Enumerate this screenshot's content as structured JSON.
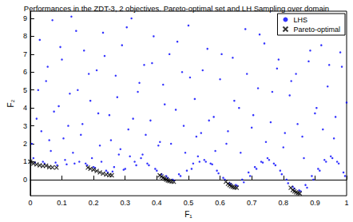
{
  "chart_data": {
    "type": "scatter",
    "title": "Performances in the ZDT-3, 2 objectives. Pareto-optimal set and LH Sampling over domain",
    "x_label": "F₁",
    "y_label": "F₂",
    "xlim": [
      0,
      1
    ],
    "ylim": [
      -0.9,
      9.4
    ],
    "xticks": [
      0,
      0.1,
      0.2,
      0.3,
      0.4,
      0.5,
      0.6,
      0.7,
      0.8,
      0.9,
      1
    ],
    "yticks": [
      0,
      1,
      2,
      3,
      4,
      5,
      6,
      7,
      8,
      9
    ],
    "grid": false,
    "legend": "upper right",
    "series": [
      {
        "name": "LHS",
        "color": "#0000ff",
        "marker": "dot",
        "values": [
          [
            0.01,
            1.2
          ],
          [
            0.02,
            3.4
          ],
          [
            0.03,
            7.8
          ],
          [
            0.04,
            1.0
          ],
          [
            0.05,
            5.5
          ],
          [
            0.06,
            2.2
          ],
          [
            0.07,
            8.9
          ],
          [
            0.08,
            0.95
          ],
          [
            0.09,
            4.1
          ],
          [
            0.1,
            6.7
          ],
          [
            0.11,
            1.1
          ],
          [
            0.12,
            3.0
          ],
          [
            0.13,
            9.1
          ],
          [
            0.14,
            0.9
          ],
          [
            0.15,
            5.0
          ],
          [
            0.16,
            2.5
          ],
          [
            0.17,
            7.2
          ],
          [
            0.18,
            0.8
          ],
          [
            0.19,
            4.4
          ],
          [
            0.2,
            0.7
          ],
          [
            0.21,
            6.1
          ],
          [
            0.22,
            1.9
          ],
          [
            0.23,
            8.2
          ],
          [
            0.24,
            0.5
          ],
          [
            0.25,
            3.6
          ],
          [
            0.26,
            0.45
          ],
          [
            0.27,
            5.8
          ],
          [
            0.28,
            1.4
          ],
          [
            0.29,
            7.5
          ],
          [
            0.3,
            0.6
          ],
          [
            0.31,
            2.8
          ],
          [
            0.32,
            9.0
          ],
          [
            0.33,
            1.0
          ],
          [
            0.34,
            4.9
          ],
          [
            0.35,
            1.2
          ],
          [
            0.36,
            6.4
          ],
          [
            0.37,
            0.9
          ],
          [
            0.38,
            3.3
          ],
          [
            0.39,
            8.0
          ],
          [
            0.4,
            0.5
          ],
          [
            0.41,
            2.1
          ],
          [
            0.42,
            5.3
          ],
          [
            0.43,
            0.2
          ],
          [
            0.44,
            7.0
          ],
          [
            0.45,
            0.0
          ],
          [
            0.46,
            3.9
          ],
          [
            0.47,
            0.3
          ],
          [
            0.48,
            6.0
          ],
          [
            0.49,
            1.5
          ],
          [
            0.5,
            8.6
          ],
          [
            0.51,
            0.6
          ],
          [
            0.52,
            4.5
          ],
          [
            0.53,
            1.3
          ],
          [
            0.54,
            2.6
          ],
          [
            0.55,
            1.1
          ],
          [
            0.56,
            7.3
          ],
          [
            0.57,
            0.9
          ],
          [
            0.58,
            3.5
          ],
          [
            0.59,
            0.5
          ],
          [
            0.6,
            5.6
          ],
          [
            0.61,
            0.1
          ],
          [
            0.62,
            2.0
          ],
          [
            0.63,
            -0.2
          ],
          [
            0.64,
            6.8
          ],
          [
            0.65,
            -0.3
          ],
          [
            0.66,
            4.0
          ],
          [
            0.67,
            0.0
          ],
          [
            0.68,
            8.4
          ],
          [
            0.69,
            0.4
          ],
          [
            0.7,
            2.9
          ],
          [
            0.71,
            0.7
          ],
          [
            0.72,
            5.1
          ],
          [
            0.73,
            1.0
          ],
          [
            0.74,
            7.6
          ],
          [
            0.75,
            1.2
          ],
          [
            0.76,
            3.2
          ],
          [
            0.77,
            0.9
          ],
          [
            0.78,
            6.2
          ],
          [
            0.79,
            0.5
          ],
          [
            0.8,
            1.8
          ],
          [
            0.81,
            0.0
          ],
          [
            0.82,
            4.7
          ],
          [
            0.83,
            -0.4
          ],
          [
            0.84,
            5.9
          ],
          [
            0.85,
            -0.6
          ],
          [
            0.86,
            2.4
          ],
          [
            0.87,
            -0.3
          ],
          [
            0.88,
            6.6
          ],
          [
            0.89,
            0.2
          ],
          [
            0.9,
            3.7
          ],
          [
            0.91,
            0.6
          ],
          [
            0.92,
            7.5
          ],
          [
            0.93,
            1.1
          ],
          [
            0.94,
            5.2
          ],
          [
            0.95,
            1.3
          ],
          [
            0.96,
            2.3
          ],
          [
            0.97,
            1.0
          ],
          [
            0.98,
            7.1
          ],
          [
            0.99,
            0.4
          ],
          [
            1.0,
            4.3
          ],
          [
            0.005,
            2.0
          ],
          [
            0.015,
            0.95
          ],
          [
            0.025,
            5.0
          ],
          [
            0.035,
            2.7
          ],
          [
            0.045,
            0.9
          ],
          [
            0.055,
            6.3
          ],
          [
            0.065,
            1.6
          ],
          [
            0.075,
            3.8
          ],
          [
            0.085,
            0.8
          ],
          [
            0.095,
            7.4
          ],
          [
            0.105,
            2.3
          ],
          [
            0.115,
            0.85
          ],
          [
            0.125,
            4.8
          ],
          [
            0.135,
            1.5
          ],
          [
            0.145,
            8.3
          ],
          [
            0.155,
            1.0
          ],
          [
            0.165,
            3.1
          ],
          [
            0.175,
            0.9
          ],
          [
            0.185,
            5.9
          ],
          [
            0.195,
            1.2
          ],
          [
            0.205,
            0.65
          ],
          [
            0.215,
            3.7
          ],
          [
            0.225,
            1.0
          ],
          [
            0.235,
            6.9
          ],
          [
            0.245,
            0.4
          ],
          [
            0.255,
            2.2
          ],
          [
            0.265,
            0.7
          ],
          [
            0.275,
            4.6
          ],
          [
            0.285,
            1.7
          ],
          [
            0.295,
            0.55
          ],
          [
            0.305,
            8.5
          ],
          [
            0.315,
            1.3
          ],
          [
            0.325,
            3.4
          ],
          [
            0.335,
            0.8
          ],
          [
            0.345,
            5.4
          ],
          [
            0.355,
            1.4
          ],
          [
            0.365,
            2.5
          ],
          [
            0.375,
            0.8
          ],
          [
            0.385,
            6.5
          ],
          [
            0.395,
            0.6
          ],
          [
            0.405,
            1.9
          ],
          [
            0.415,
            0.3
          ],
          [
            0.425,
            4.2
          ],
          [
            0.435,
            0.1
          ],
          [
            0.445,
            2.0
          ],
          [
            0.455,
            -0.05
          ],
          [
            0.465,
            7.7
          ],
          [
            0.475,
            0.2
          ],
          [
            0.485,
            3.0
          ],
          [
            0.495,
            0.5
          ],
          [
            0.505,
            5.7
          ],
          [
            0.515,
            0.9
          ],
          [
            0.525,
            2.4
          ],
          [
            0.535,
            1.0
          ],
          [
            0.545,
            6.1
          ],
          [
            0.555,
            1.0
          ],
          [
            0.565,
            3.3
          ],
          [
            0.575,
            0.85
          ],
          [
            0.585,
            1.6
          ],
          [
            0.595,
            0.35
          ],
          [
            0.605,
            7.0
          ],
          [
            0.615,
            0.0
          ],
          [
            0.625,
            2.7
          ],
          [
            0.635,
            -0.25
          ],
          [
            0.645,
            4.4
          ],
          [
            0.655,
            -0.35
          ],
          [
            0.665,
            1.5
          ],
          [
            0.675,
            -0.15
          ],
          [
            0.685,
            5.9
          ],
          [
            0.695,
            0.2
          ],
          [
            0.705,
            3.6
          ],
          [
            0.715,
            0.6
          ],
          [
            0.725,
            8.1
          ],
          [
            0.735,
            0.95
          ],
          [
            0.745,
            2.1
          ],
          [
            0.755,
            1.1
          ],
          [
            0.765,
            4.9
          ],
          [
            0.775,
            0.8
          ],
          [
            0.785,
            6.7
          ],
          [
            0.795,
            0.3
          ],
          [
            0.805,
            2.6
          ],
          [
            0.815,
            -0.2
          ],
          [
            0.825,
            5.5
          ],
          [
            0.835,
            -0.5
          ],
          [
            0.845,
            3.1
          ],
          [
            0.855,
            -0.65
          ],
          [
            0.865,
            1.2
          ],
          [
            0.875,
            -0.45
          ],
          [
            0.885,
            7.2
          ],
          [
            0.895,
            0.0
          ],
          [
            0.905,
            4.0
          ],
          [
            0.915,
            0.5
          ],
          [
            0.925,
            2.8
          ],
          [
            0.935,
            1.0
          ],
          [
            0.945,
            6.4
          ],
          [
            0.955,
            1.2
          ],
          [
            0.965,
            3.5
          ],
          [
            0.975,
            0.9
          ],
          [
            0.985,
            6.3
          ],
          [
            0.995,
            0.2
          ]
        ]
      },
      {
        "name": "Pareto-optimal",
        "color": "#000000",
        "marker": "x",
        "values": [
          [
            0.0,
            1.0
          ],
          [
            0.01,
            0.898
          ],
          [
            0.02,
            0.847
          ],
          [
            0.03,
            0.799
          ],
          [
            0.04,
            0.762
          ],
          [
            0.05,
            0.776
          ],
          [
            0.06,
            0.698
          ],
          [
            0.07,
            0.683
          ],
          [
            0.083,
            0.67
          ],
          [
            0.1822,
            0.67
          ],
          [
            0.19,
            0.605
          ],
          [
            0.2,
            0.553
          ],
          [
            0.21,
            0.478
          ],
          [
            0.22,
            0.402
          ],
          [
            0.23,
            0.335
          ],
          [
            0.24,
            0.282
          ],
          [
            0.25,
            0.25
          ],
          [
            0.2577,
            0.242
          ],
          [
            0.4093,
            0.242
          ],
          [
            0.415,
            0.168
          ],
          [
            0.42,
            0.105
          ],
          [
            0.425,
            0.05
          ],
          [
            0.43,
            -0.004
          ],
          [
            0.435,
            -0.048
          ],
          [
            0.44,
            -0.082
          ],
          [
            0.447,
            -0.11
          ],
          [
            0.4538,
            -0.124
          ],
          [
            0.6183,
            -0.123
          ],
          [
            0.625,
            -0.23
          ],
          [
            0.63,
            -0.303
          ],
          [
            0.635,
            -0.363
          ],
          [
            0.64,
            -0.409
          ],
          [
            0.646,
            -0.44
          ],
          [
            0.6525,
            -0.458
          ],
          [
            0.8233,
            -0.458
          ],
          [
            0.83,
            -0.583
          ],
          [
            0.835,
            -0.658
          ],
          [
            0.84,
            -0.715
          ],
          [
            0.846,
            -0.75
          ],
          [
            0.8518,
            -0.773
          ]
        ]
      }
    ]
  }
}
